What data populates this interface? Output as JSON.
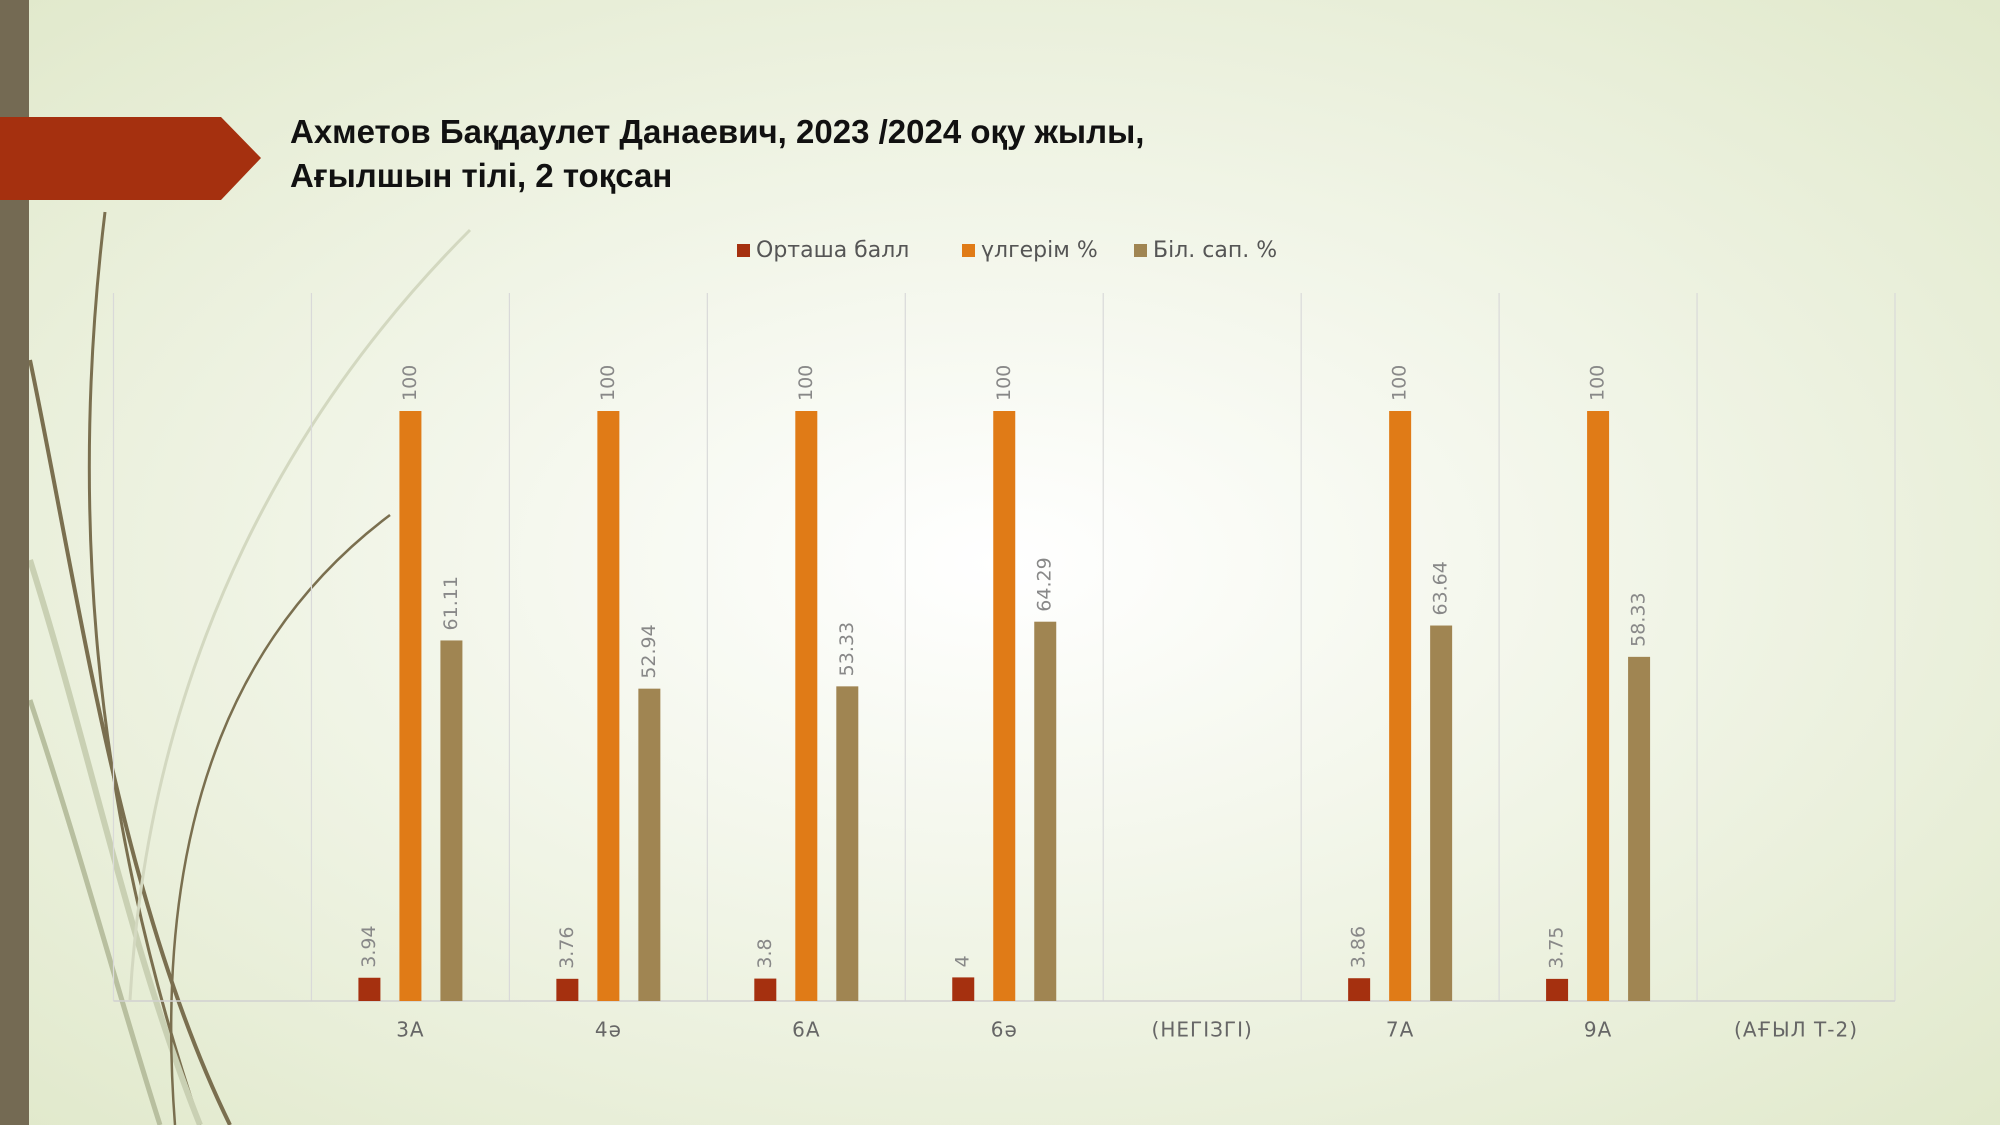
{
  "chart_data": {
    "type": "bar",
    "title": [
      "Ахметов Бақдаулет Данаевич, 2023 /2024 оқу жылы,",
      "Ағылшын тілі, 2 тоқсан"
    ],
    "categories": [
      null,
      "3А",
      "4ә",
      "6А",
      "6ә",
      "(НЕГІЗГІ)",
      "7А",
      "9А",
      "(АҒЫЛ Т-2)"
    ],
    "series": [
      {
        "name": "Орташа балл",
        "color": "#a5300f",
        "values": [
          null,
          3.94,
          3.76,
          3.8,
          4,
          null,
          3.86,
          3.75,
          null
        ]
      },
      {
        "name": "үлгерім %",
        "color": "#e07b17",
        "values": [
          null,
          100,
          100,
          100,
          100,
          null,
          100,
          100,
          null
        ]
      },
      {
        "name": "Біл. сап. %",
        "color": "#a08552",
        "values": [
          null,
          61.11,
          52.94,
          53.33,
          64.29,
          null,
          63.64,
          58.33,
          null
        ]
      }
    ],
    "ylim": [
      0,
      120
    ],
    "legend": "top",
    "data_labels": true
  }
}
